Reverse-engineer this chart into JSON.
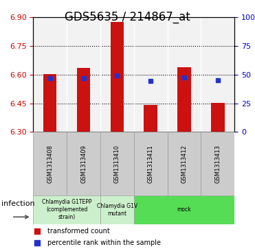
{
  "title": "GDS5635 / 214867_at",
  "samples": [
    "GSM1313408",
    "GSM1313409",
    "GSM1313410",
    "GSM1313411",
    "GSM1313412",
    "GSM1313413"
  ],
  "bar_bottoms": [
    6.3,
    6.3,
    6.3,
    6.3,
    6.3,
    6.3
  ],
  "bar_tops": [
    6.604,
    6.636,
    6.878,
    6.44,
    6.638,
    6.454
  ],
  "percentile_values": [
    6.582,
    6.582,
    6.596,
    6.569,
    6.584,
    6.57
  ],
  "ylim_left": [
    6.3,
    6.9
  ],
  "ylim_right": [
    0,
    100
  ],
  "yticks_left": [
    6.3,
    6.45,
    6.6,
    6.75,
    6.9
  ],
  "yticks_right": [
    0,
    25,
    50,
    75,
    100
  ],
  "ytick_labels_right": [
    "0",
    "25",
    "50",
    "75",
    "100%"
  ],
  "bar_color": "#cc1111",
  "percentile_color": "#2233cc",
  "plot_bg": "#f2f2f2",
  "group_defs": [
    {
      "samples": [
        0,
        1
      ],
      "label": "Chlamydia G1TEPP\n(complemented\nstrain)",
      "color": "#ccf0cc"
    },
    {
      "samples": [
        2,
        2
      ],
      "label": "Chlamydia G1V\nmutant",
      "color": "#ccf0cc"
    },
    {
      "samples": [
        3,
        5
      ],
      "label": "mock",
      "color": "#55dd55"
    }
  ],
  "infection_label": "infection",
  "legend_red": "transformed count",
  "legend_blue": "percentile rank within the sample",
  "left_tick_color": "#cc0000",
  "right_tick_color": "#0000cc",
  "title_fontsize": 12,
  "tick_fontsize": 8,
  "bar_width": 0.4
}
